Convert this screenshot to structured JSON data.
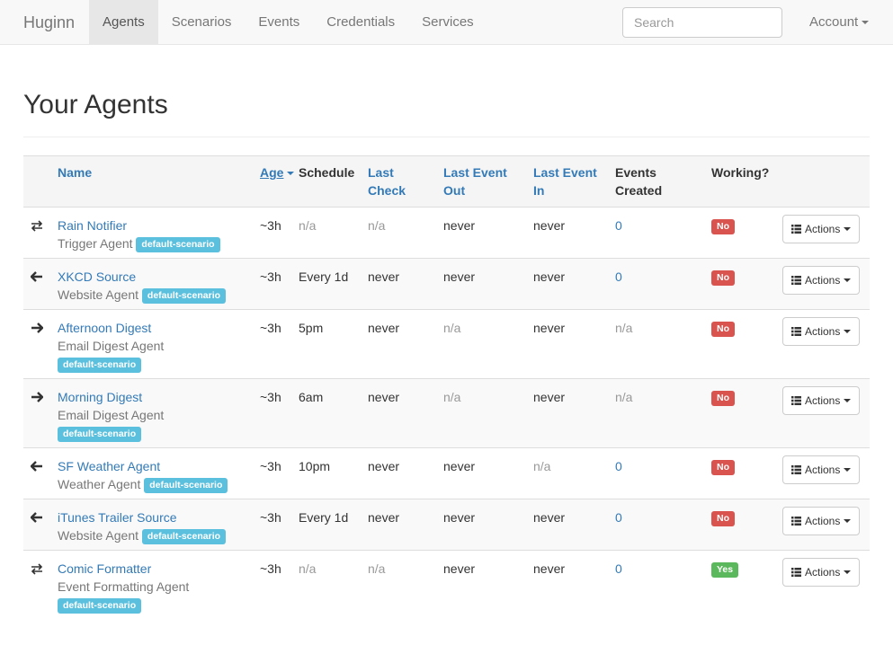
{
  "navbar": {
    "brand": "Huginn",
    "links": [
      "Agents",
      "Scenarios",
      "Events",
      "Credentials",
      "Services"
    ],
    "active": 0,
    "search_placeholder": "Search",
    "account": "Account"
  },
  "page": {
    "title": "Your Agents"
  },
  "table": {
    "headers": [
      {
        "label": "Name",
        "link": true
      },
      {
        "label": "Age",
        "link": true
      },
      {
        "label": "Schedule",
        "link": false
      },
      {
        "label": "Last Check",
        "link": true
      },
      {
        "label": "Last Event Out",
        "link": true
      },
      {
        "label": "Last Event In",
        "link": true
      },
      {
        "label": "Events Created",
        "link": false
      },
      {
        "label": "Working?",
        "link": false
      }
    ],
    "actions_label": "Actions",
    "rows": [
      {
        "icon": "both",
        "name": "Rain Notifier",
        "type": "Trigger Agent",
        "scenario": "default-scenario",
        "age": "~3h",
        "schedule": "n/a",
        "last_check": "n/a",
        "last_event_out": "never",
        "last_event_in": "never",
        "events_created": "0",
        "working": {
          "label": "No",
          "color": "#d9534f"
        },
        "muted": [
          "schedule",
          "last_check"
        ]
      },
      {
        "icon": "left",
        "name": "XKCD Source",
        "type": "Website Agent",
        "scenario": "default-scenario",
        "age": "~3h",
        "schedule": "Every 1d",
        "last_check": "never",
        "last_event_out": "never",
        "last_event_in": "never",
        "events_created": "0",
        "working": {
          "label": "No",
          "color": "#d9534f"
        },
        "muted": []
      },
      {
        "icon": "right",
        "name": "Afternoon Digest",
        "type": "Email Digest Agent",
        "scenario": "default-scenario",
        "age": "~3h",
        "schedule": "5pm",
        "last_check": "never",
        "last_event_out": "n/a",
        "last_event_in": "never",
        "events_created": "n/a",
        "working": {
          "label": "No",
          "color": "#d9534f"
        },
        "muted": [
          "last_event_out",
          "events_created"
        ]
      },
      {
        "icon": "right",
        "name": "Morning Digest",
        "type": "Email Digest Agent",
        "scenario": "default-scenario",
        "age": "~3h",
        "schedule": "6am",
        "last_check": "never",
        "last_event_out": "n/a",
        "last_event_in": "never",
        "events_created": "n/a",
        "working": {
          "label": "No",
          "color": "#d9534f"
        },
        "muted": [
          "last_event_out",
          "events_created"
        ]
      },
      {
        "icon": "left",
        "name": "SF Weather Agent",
        "type": "Weather Agent",
        "scenario": "default-scenario",
        "age": "~3h",
        "schedule": "10pm",
        "last_check": "never",
        "last_event_out": "never",
        "last_event_in": "n/a",
        "events_created": "0",
        "working": {
          "label": "No",
          "color": "#d9534f"
        },
        "muted": [
          "last_event_in"
        ]
      },
      {
        "icon": "left",
        "name": "iTunes Trailer Source",
        "type": "Website Agent",
        "scenario": "default-scenario",
        "age": "~3h",
        "schedule": "Every 1d",
        "last_check": "never",
        "last_event_out": "never",
        "last_event_in": "never",
        "events_created": "0",
        "working": {
          "label": "No",
          "color": "#d9534f"
        },
        "muted": []
      },
      {
        "icon": "both",
        "name": "Comic Formatter",
        "type": "Event Formatting Agent",
        "scenario": "default-scenario",
        "age": "~3h",
        "schedule": "n/a",
        "last_check": "n/a",
        "last_event_out": "never",
        "last_event_in": "never",
        "events_created": "0",
        "working": {
          "label": "Yes",
          "color": "#5cb85c"
        },
        "muted": [
          "schedule",
          "last_check"
        ]
      }
    ]
  }
}
